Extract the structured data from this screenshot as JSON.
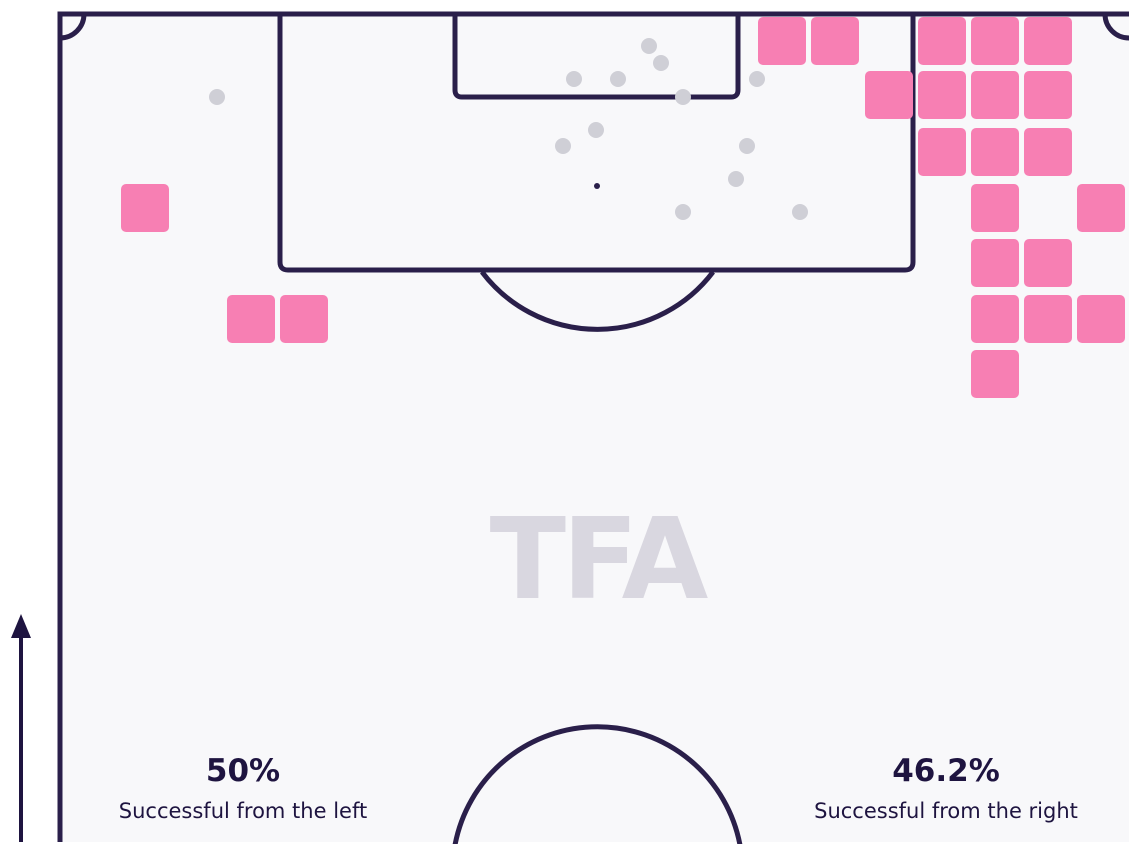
{
  "watermark": "TFA",
  "left": {
    "value": "50%",
    "caption": "Successful from the left"
  },
  "right": {
    "value": "46.2%",
    "caption": "Successful from the right"
  }
}
